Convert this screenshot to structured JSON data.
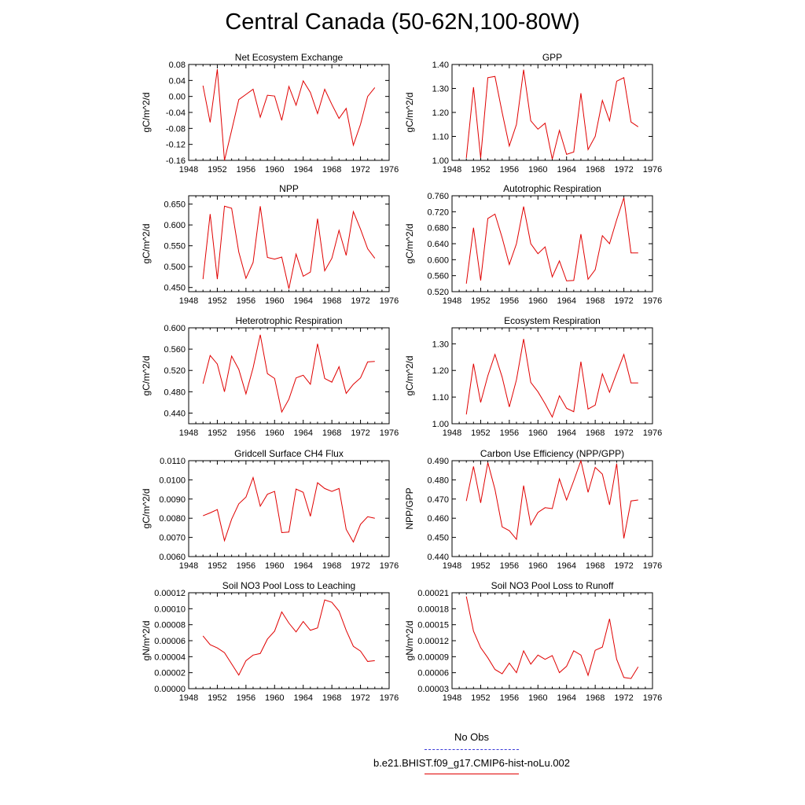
{
  "page": {
    "title": "Central Canada (50-62N,100-80W)"
  },
  "colors": {
    "model": "#e00000",
    "obs": "#3a3ad8",
    "axis": "#000000"
  },
  "legend": {
    "entries": [
      {
        "label": "No Obs",
        "color": "#3a3ad8",
        "style": "dashed"
      },
      {
        "label": "b.e21.BHIST.f09_g17.CMIP6-hist-noLu.002",
        "color": "#e00000",
        "style": "solid"
      }
    ]
  },
  "chart_data": [
    {
      "type": "line",
      "title": "Net Ecosystem Exchange",
      "ylabel": "gC/m^2/d",
      "xlabel": "",
      "xlim": [
        1948,
        1976
      ],
      "ylim": [
        -0.16,
        0.08
      ],
      "xticks": [
        "1948",
        "1952",
        "1956",
        "1960",
        "1964",
        "1968",
        "1972",
        "1976"
      ],
      "yticks": [
        "-0.16",
        "-0.12",
        "-0.08",
        "-0.04",
        "0.00",
        "0.04",
        "0.08"
      ],
      "x": [
        1950,
        1951,
        1952,
        1953,
        1954,
        1955,
        1956,
        1957,
        1958,
        1959,
        1960,
        1961,
        1962,
        1963,
        1964,
        1965,
        1966,
        1967,
        1968,
        1969,
        1970,
        1971,
        1972,
        1973,
        1974
      ],
      "series": [
        {
          "values": [
            0.027,
            -0.065,
            0.068,
            -0.16,
            -0.085,
            -0.008,
            0.005,
            0.018,
            -0.052,
            0.003,
            0.001,
            -0.06,
            0.025,
            -0.022,
            0.039,
            0.01,
            -0.043,
            0.018,
            -0.02,
            -0.055,
            -0.03,
            -0.122,
            -0.07,
            0.0,
            0.022
          ]
        }
      ]
    },
    {
      "type": "line",
      "title": "GPP",
      "ylabel": "gC/m^2/d",
      "xlabel": "",
      "xlim": [
        1948,
        1976
      ],
      "ylim": [
        1.0,
        1.4
      ],
      "xticks": [
        "1948",
        "1952",
        "1956",
        "1960",
        "1964",
        "1968",
        "1972",
        "1976"
      ],
      "yticks": [
        "1.00",
        "1.10",
        "1.20",
        "1.30",
        "1.40"
      ],
      "x": [
        1950,
        1951,
        1952,
        1953,
        1954,
        1955,
        1956,
        1957,
        1958,
        1959,
        1960,
        1961,
        1962,
        1963,
        1964,
        1965,
        1966,
        1967,
        1968,
        1969,
        1970,
        1971,
        1972,
        1973,
        1974
      ],
      "series": [
        {
          "values": [
            1.01,
            1.305,
            1.01,
            1.345,
            1.35,
            1.2,
            1.06,
            1.15,
            1.378,
            1.165,
            1.13,
            1.155,
            1.005,
            1.125,
            1.025,
            1.035,
            1.28,
            1.045,
            1.1,
            1.25,
            1.165,
            1.33,
            1.345,
            1.16,
            1.14
          ]
        }
      ]
    },
    {
      "type": "line",
      "title": "NPP",
      "ylabel": "gC/m^2/d",
      "xlabel": "",
      "xlim": [
        1948,
        1976
      ],
      "ylim": [
        0.44,
        0.67
      ],
      "xticks": [
        "1948",
        "1952",
        "1956",
        "1960",
        "1964",
        "1968",
        "1972",
        "1976"
      ],
      "yticks": [
        "0.450",
        "0.500",
        "0.550",
        "0.600",
        "0.650"
      ],
      "x": [
        1950,
        1951,
        1952,
        1953,
        1954,
        1955,
        1956,
        1957,
        1958,
        1959,
        1960,
        1961,
        1962,
        1963,
        1964,
        1965,
        1966,
        1967,
        1968,
        1969,
        1970,
        1971,
        1972,
        1973,
        1974
      ],
      "series": [
        {
          "values": [
            0.47,
            0.626,
            0.47,
            0.645,
            0.64,
            0.535,
            0.472,
            0.51,
            0.645,
            0.522,
            0.518,
            0.523,
            0.447,
            0.53,
            0.477,
            0.487,
            0.615,
            0.49,
            0.52,
            0.587,
            0.527,
            0.632,
            0.59,
            0.543,
            0.52
          ]
        }
      ]
    },
    {
      "type": "line",
      "title": "Autotrophic Respiration",
      "ylabel": "gC/m^2/d",
      "xlabel": "",
      "xlim": [
        1948,
        1976
      ],
      "ylim": [
        0.52,
        0.76
      ],
      "xticks": [
        "1948",
        "1952",
        "1956",
        "1960",
        "1964",
        "1968",
        "1972",
        "1976"
      ],
      "yticks": [
        "0.520",
        "0.560",
        "0.600",
        "0.640",
        "0.680",
        "0.720",
        "0.760"
      ],
      "x": [
        1950,
        1951,
        1952,
        1953,
        1954,
        1955,
        1956,
        1957,
        1958,
        1959,
        1960,
        1961,
        1962,
        1963,
        1964,
        1965,
        1966,
        1967,
        1968,
        1969,
        1970,
        1971,
        1972,
        1973,
        1974
      ],
      "series": [
        {
          "values": [
            0.54,
            0.68,
            0.548,
            0.703,
            0.714,
            0.655,
            0.588,
            0.64,
            0.733,
            0.64,
            0.615,
            0.632,
            0.557,
            0.597,
            0.547,
            0.548,
            0.664,
            0.551,
            0.575,
            0.66,
            0.64,
            0.7,
            0.755,
            0.617,
            0.617
          ]
        }
      ]
    },
    {
      "type": "line",
      "title": "Heterotrophic Respiration",
      "ylabel": "gC/m^2/d",
      "xlabel": "",
      "xlim": [
        1948,
        1976
      ],
      "ylim": [
        0.42,
        0.6
      ],
      "xticks": [
        "1948",
        "1952",
        "1956",
        "1960",
        "1964",
        "1968",
        "1972",
        "1976"
      ],
      "yticks": [
        "0.440",
        "0.480",
        "0.520",
        "0.560",
        "0.600"
      ],
      "x": [
        1950,
        1951,
        1952,
        1953,
        1954,
        1955,
        1956,
        1957,
        1958,
        1959,
        1960,
        1961,
        1962,
        1963,
        1964,
        1965,
        1966,
        1967,
        1968,
        1969,
        1970,
        1971,
        1972,
        1973,
        1974
      ],
      "series": [
        {
          "values": [
            0.495,
            0.548,
            0.532,
            0.48,
            0.547,
            0.522,
            0.476,
            0.525,
            0.587,
            0.514,
            0.505,
            0.442,
            0.466,
            0.506,
            0.511,
            0.494,
            0.57,
            0.505,
            0.498,
            0.527,
            0.477,
            0.494,
            0.506,
            0.536,
            0.537
          ]
        }
      ]
    },
    {
      "type": "line",
      "title": "Ecosystem Respiration",
      "ylabel": "gC/m^2/d",
      "xlabel": "",
      "xlim": [
        1948,
        1976
      ],
      "ylim": [
        1.0,
        1.36
      ],
      "xticks": [
        "1948",
        "1952",
        "1956",
        "1960",
        "1964",
        "1968",
        "1972",
        "1976"
      ],
      "yticks": [
        "1.00",
        "1.10",
        "1.20",
        "1.30"
      ],
      "x": [
        1950,
        1951,
        1952,
        1953,
        1954,
        1955,
        1956,
        1957,
        1958,
        1959,
        1960,
        1961,
        1962,
        1963,
        1964,
        1965,
        1966,
        1967,
        1968,
        1969,
        1970,
        1971,
        1972,
        1973,
        1974
      ],
      "series": [
        {
          "values": [
            1.035,
            1.225,
            1.08,
            1.18,
            1.26,
            1.175,
            1.063,
            1.165,
            1.318,
            1.155,
            1.12,
            1.075,
            1.025,
            1.105,
            1.058,
            1.045,
            1.233,
            1.055,
            1.07,
            1.187,
            1.118,
            1.19,
            1.26,
            1.153,
            1.153
          ]
        }
      ]
    },
    {
      "type": "line",
      "title": "Gridcell Surface CH4 Flux",
      "ylabel": "gC/m^2/d",
      "xlabel": "",
      "xlim": [
        1948,
        1976
      ],
      "ylim": [
        0.006,
        0.011
      ],
      "xticks": [
        "1948",
        "1952",
        "1956",
        "1960",
        "1964",
        "1968",
        "1972",
        "1976"
      ],
      "yticks": [
        "0.0060",
        "0.0070",
        "0.0080",
        "0.0090",
        "0.0100",
        "0.0110"
      ],
      "x": [
        1950,
        1951,
        1952,
        1953,
        1954,
        1955,
        1956,
        1957,
        1958,
        1959,
        1960,
        1961,
        1962,
        1963,
        1964,
        1965,
        1966,
        1967,
        1968,
        1969,
        1970,
        1971,
        1972,
        1973,
        1974
      ],
      "series": [
        {
          "values": [
            0.00813,
            0.00828,
            0.00845,
            0.00683,
            0.00795,
            0.00875,
            0.0091,
            0.01012,
            0.00863,
            0.00925,
            0.0094,
            0.00725,
            0.00728,
            0.00952,
            0.00935,
            0.0081,
            0.00985,
            0.00955,
            0.0094,
            0.00955,
            0.00742,
            0.00676,
            0.00768,
            0.00808,
            0.008
          ]
        }
      ]
    },
    {
      "type": "line",
      "title": "Carbon Use Efficiency (NPP/GPP)",
      "ylabel": "NPP/GPP",
      "xlabel": "",
      "xlim": [
        1948,
        1976
      ],
      "ylim": [
        0.44,
        0.49
      ],
      "xticks": [
        "1948",
        "1952",
        "1956",
        "1960",
        "1964",
        "1968",
        "1972",
        "1976"
      ],
      "yticks": [
        "0.440",
        "0.450",
        "0.460",
        "0.470",
        "0.480",
        "0.490"
      ],
      "x": [
        1950,
        1951,
        1952,
        1953,
        1954,
        1955,
        1956,
        1957,
        1958,
        1959,
        1960,
        1961,
        1962,
        1963,
        1964,
        1965,
        1966,
        1967,
        1968,
        1969,
        1970,
        1971,
        1972,
        1973,
        1974
      ],
      "series": [
        {
          "values": [
            0.469,
            0.487,
            0.468,
            0.489,
            0.475,
            0.4555,
            0.4535,
            0.449,
            0.477,
            0.4565,
            0.463,
            0.4655,
            0.465,
            0.4805,
            0.4695,
            0.4795,
            0.49,
            0.4735,
            0.4865,
            0.483,
            0.467,
            0.4885,
            0.4495,
            0.469,
            0.4695
          ]
        }
      ]
    },
    {
      "type": "line",
      "title": "Soil NO3 Pool Loss to Leaching",
      "ylabel": "gN/m^2/d",
      "xlabel": "",
      "xlim": [
        1948,
        1976
      ],
      "ylim": [
        0.0,
        0.00012
      ],
      "xticks": [
        "1948",
        "1952",
        "1956",
        "1960",
        "1964",
        "1968",
        "1972",
        "1976"
      ],
      "yticks": [
        "0.00000",
        "0.00002",
        "0.00004",
        "0.00006",
        "0.00008",
        "0.00010",
        "0.00012"
      ],
      "x": [
        1950,
        1951,
        1952,
        1953,
        1954,
        1955,
        1956,
        1957,
        1958,
        1959,
        1960,
        1961,
        1962,
        1963,
        1964,
        1965,
        1966,
        1967,
        1968,
        1969,
        1970,
        1971,
        1972,
        1973,
        1974
      ],
      "series": [
        {
          "values": [
            6.6e-05,
            5.5e-05,
            5.1e-05,
            4.5e-05,
            3.1e-05,
            1.7e-05,
            3.5e-05,
            4.2e-05,
            4.4e-05,
            6.2e-05,
            7.2e-05,
            9.6e-05,
            8.2e-05,
            7.1e-05,
            8.4e-05,
            7.3e-05,
            7.6e-05,
            0.000111,
            0.000108,
            9.7e-05,
            7.3e-05,
            5.3e-05,
            4.7e-05,
            3.4e-05,
            3.5e-05
          ]
        }
      ]
    },
    {
      "type": "line",
      "title": "Soil NO3 Pool Loss to Runoff",
      "ylabel": "gN/m^2/d",
      "xlabel": "",
      "xlim": [
        1948,
        1976
      ],
      "ylim": [
        3e-05,
        0.00021
      ],
      "xticks": [
        "1948",
        "1952",
        "1956",
        "1960",
        "1964",
        "1968",
        "1972",
        "1976"
      ],
      "yticks": [
        "0.00003",
        "0.00006",
        "0.00009",
        "0.00012",
        "0.00015",
        "0.00018",
        "0.00021"
      ],
      "x": [
        1950,
        1951,
        1952,
        1953,
        1954,
        1955,
        1956,
        1957,
        1958,
        1959,
        1960,
        1961,
        1962,
        1963,
        1964,
        1965,
        1966,
        1967,
        1968,
        1969,
        1970,
        1971,
        1972,
        1973,
        1974
      ],
      "series": [
        {
          "values": [
            0.000203,
            0.000138,
            0.000107,
            8.8e-05,
            6.6e-05,
            5.8e-05,
            7.8e-05,
            6e-05,
            0.000101,
            7.6e-05,
            9.3e-05,
            8.5e-05,
            9.2e-05,
            6e-05,
            7.2e-05,
            0.000101,
            9.3e-05,
            5.5e-05,
            0.000102,
            0.000108,
            0.000161,
            8.5e-05,
            5.1e-05,
            4.9e-05,
            7.1e-05
          ]
        }
      ]
    }
  ]
}
